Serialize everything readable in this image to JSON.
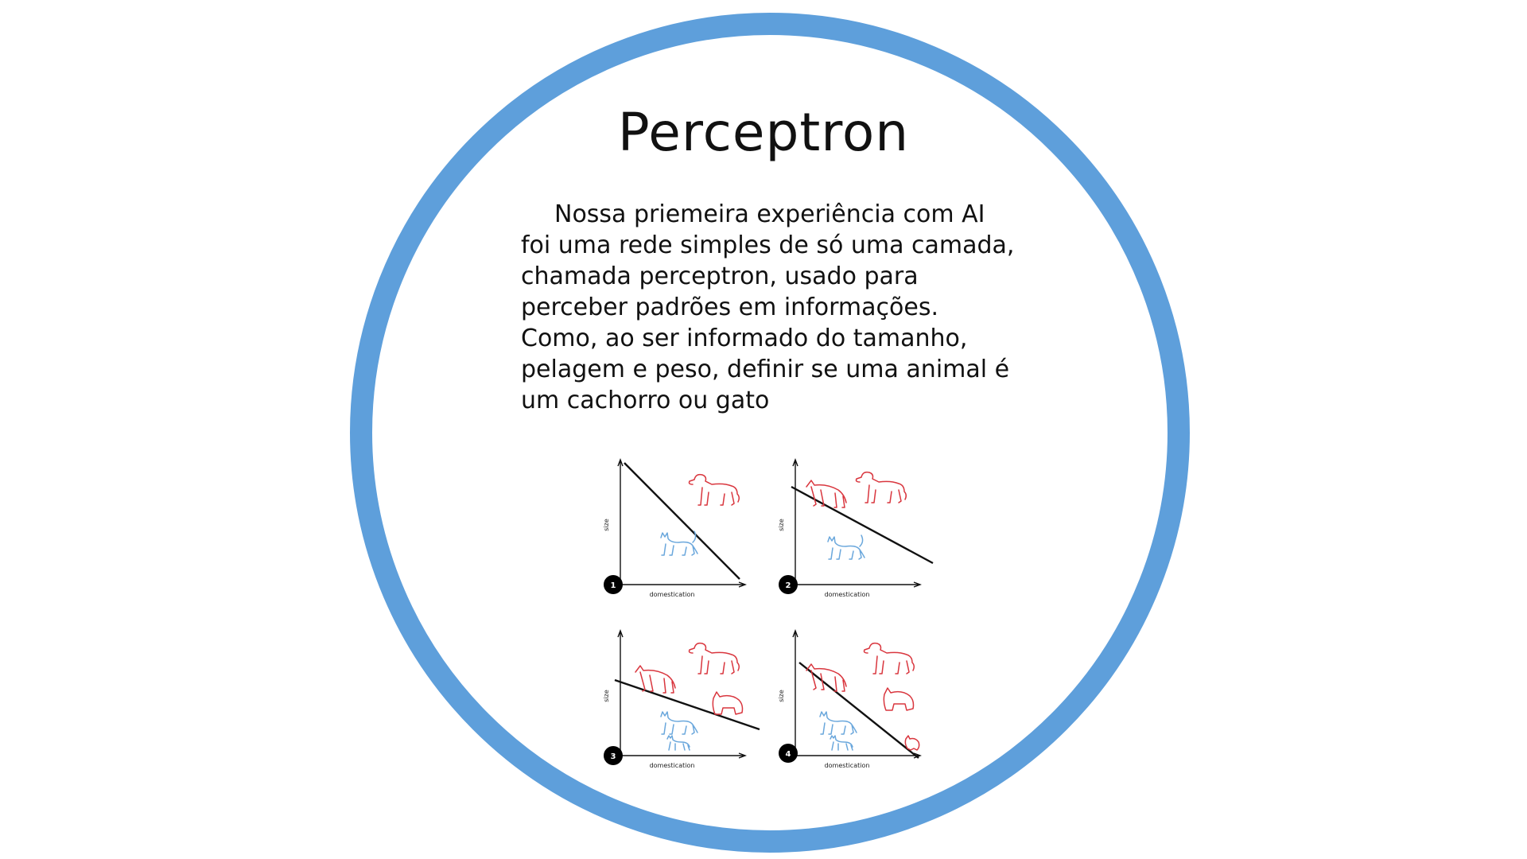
{
  "slide": {
    "title": "Perceptron",
    "paragraph": [
      "Nossa priemeira experiência com AI",
      "foi uma rede simples de só uma camada,",
      "chamada perceptron, usado para",
      "perceber padrões em informações.",
      "Como, ao ser informado do tamanho,",
      "pelagem e peso, definir se uma animal é",
      "um cachorro ou gato"
    ]
  },
  "figure": {
    "x_axis_label": "domestication",
    "y_axis_label": "size",
    "panels": [
      {
        "number": "1"
      },
      {
        "number": "2"
      },
      {
        "number": "3"
      },
      {
        "number": "4"
      }
    ]
  },
  "colors": {
    "ring": "#5e9fdb",
    "dog": "#d9363e",
    "cat": "#6aa7dc"
  }
}
